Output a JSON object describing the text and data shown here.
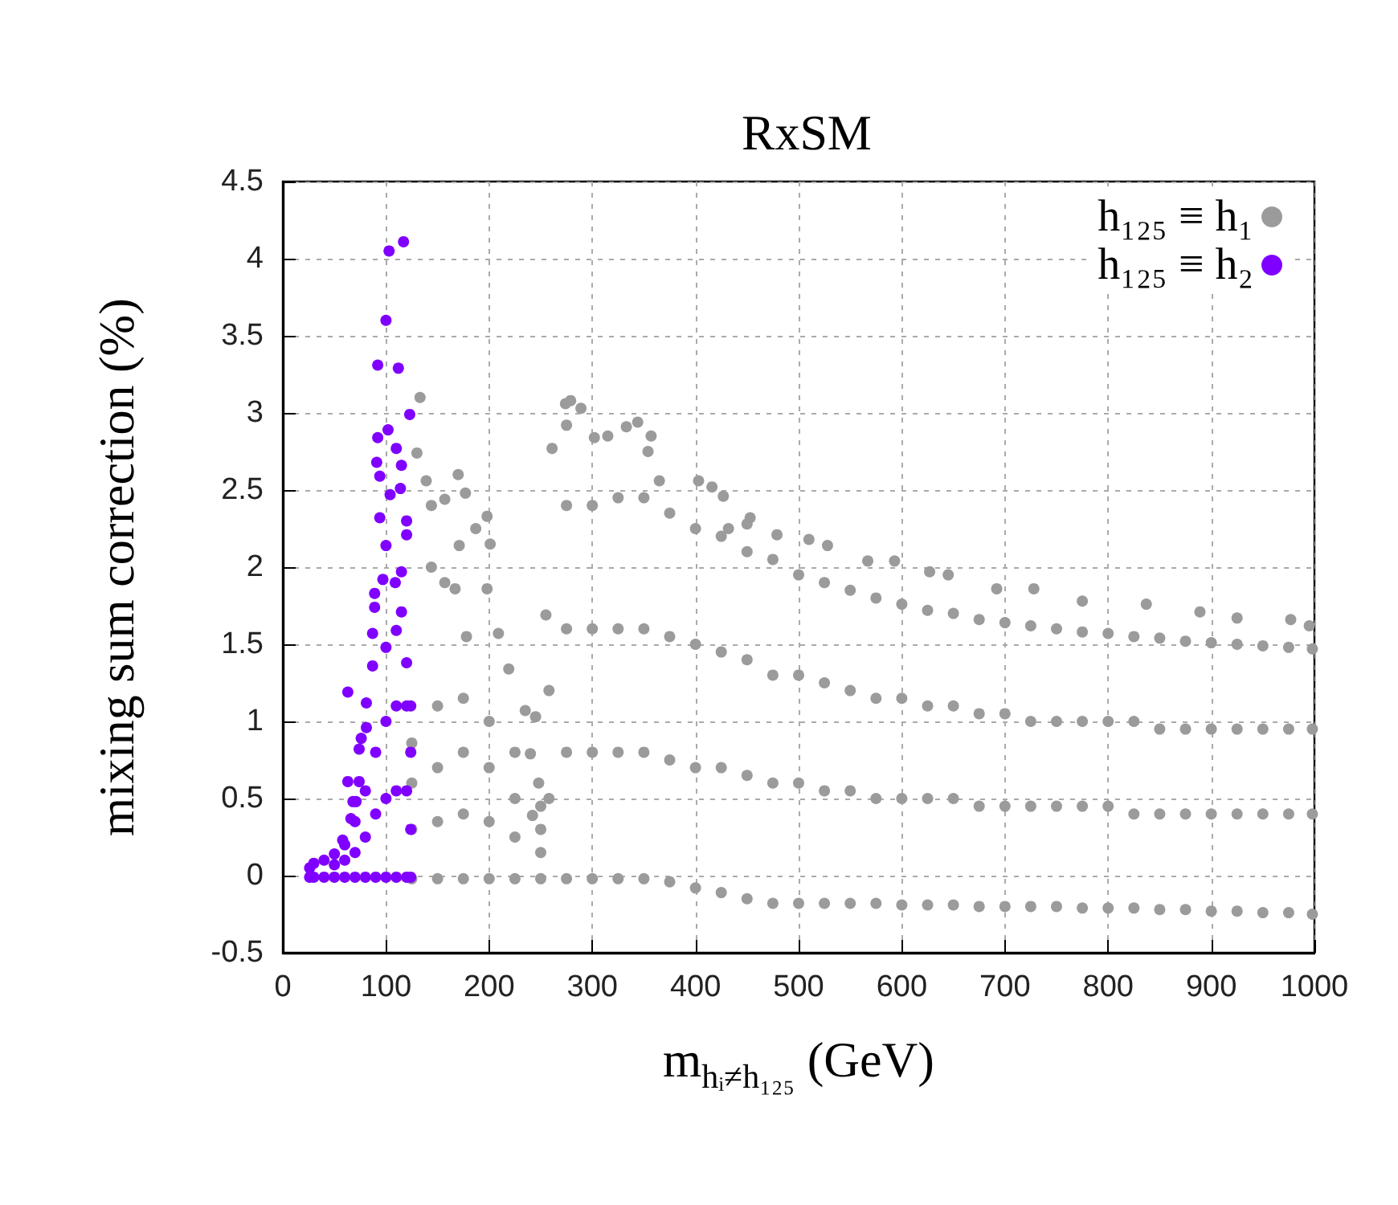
{
  "chart_data": {
    "type": "scatter",
    "title": "RxSM",
    "xlabel": "m$_{hᵢ≠h₁₂₅}$ (GeV)",
    "ylabel": "mixing sum correction (%)",
    "xlim": [
      0,
      1000
    ],
    "xticks": [
      0,
      100,
      200,
      300,
      400,
      500,
      600,
      700,
      800,
      900,
      1000
    ],
    "ylim": [
      -0.5,
      4.5
    ],
    "yticks": [
      -0.5,
      0,
      0.5,
      1,
      1.5,
      2,
      2.5,
      3,
      3.5,
      4,
      4.5
    ],
    "grid": true,
    "legend": "top right",
    "marker": "circle",
    "series": [
      {
        "name": "h₁₂₅ ≡ h₁",
        "color": "#9b9b9b",
        "x": [
          125,
          125,
          125,
          125,
          150,
          150,
          150,
          150,
          175,
          175,
          175,
          175,
          200,
          200,
          200,
          200,
          225,
          225,
          225,
          225,
          250,
          250,
          250,
          250,
          275,
          275,
          275,
          275,
          300,
          300,
          300,
          300,
          325,
          325,
          325,
          325,
          350,
          350,
          350,
          350,
          375,
          375,
          375,
          375,
          400,
          400,
          400,
          400,
          425,
          425,
          425,
          425,
          450,
          450,
          450,
          450,
          475,
          475,
          475,
          475,
          500,
          500,
          500,
          500,
          525,
          525,
          525,
          525,
          550,
          550,
          550,
          550,
          575,
          575,
          575,
          575,
          600,
          600,
          600,
          600,
          625,
          625,
          625,
          625,
          650,
          650,
          650,
          650,
          675,
          675,
          675,
          675,
          700,
          700,
          700,
          700,
          725,
          725,
          725,
          725,
          750,
          750,
          750,
          750,
          775,
          775,
          775,
          775,
          800,
          800,
          800,
          800,
          825,
          825,
          825,
          825,
          850,
          850,
          850,
          850,
          875,
          875,
          875,
          875,
          900,
          900,
          900,
          900,
          925,
          925,
          925,
          925,
          950,
          950,
          950,
          950,
          975,
          975,
          975,
          975,
          998,
          998,
          998,
          998,
          133,
          130,
          139,
          170,
          177,
          157,
          144,
          198,
          187,
          171,
          201,
          144,
          157,
          198,
          167,
          209,
          178,
          219,
          235,
          245,
          240,
          248,
          242,
          255,
          258,
          258,
          261,
          274,
          279,
          289,
          275,
          302,
          315,
          333,
          344,
          357,
          354,
          365,
          403,
          416,
          432,
          450,
          427,
          453,
          479,
          510,
          528,
          567,
          593,
          627,
          645,
          692,
          728,
          775,
          837,
          889,
          925,
          977,
          995
        ],
        "values": [
          -0.02,
          0.3,
          0.6,
          0.86,
          -0.02,
          0.35,
          0.7,
          1.1,
          -0.02,
          0.4,
          0.8,
          1.15,
          -0.02,
          0.35,
          0.7,
          1,
          -0.02,
          0.25,
          0.5,
          0.8,
          -0.02,
          0.15,
          0.3,
          0.45,
          -0.02,
          0.8,
          1.6,
          2.4,
          -0.02,
          0.8,
          1.6,
          2.4,
          -0.02,
          0.8,
          1.6,
          2.45,
          -0.02,
          0.8,
          1.6,
          2.45,
          -0.04,
          0.75,
          1.55,
          2.35,
          -0.08,
          0.7,
          1.5,
          2.25,
          -0.11,
          0.7,
          1.45,
          2.2,
          -0.15,
          0.65,
          1.4,
          2.1,
          -0.18,
          0.6,
          1.3,
          2.05,
          -0.18,
          0.6,
          1.3,
          1.95,
          -0.18,
          0.55,
          1.25,
          1.9,
          -0.18,
          0.55,
          1.2,
          1.85,
          -0.18,
          0.5,
          1.15,
          1.8,
          -0.19,
          0.5,
          1.15,
          1.76,
          -0.19,
          0.5,
          1.1,
          1.72,
          -0.19,
          0.5,
          1.1,
          1.7,
          -0.2,
          0.45,
          1.05,
          1.66,
          -0.2,
          0.45,
          1.05,
          1.64,
          -0.2,
          0.45,
          1,
          1.62,
          -0.2,
          0.45,
          1,
          1.6,
          -0.21,
          0.45,
          1,
          1.58,
          -0.21,
          0.45,
          1,
          1.57,
          -0.21,
          0.4,
          1,
          1.55,
          -0.22,
          0.4,
          0.95,
          1.54,
          -0.22,
          0.4,
          0.95,
          1.52,
          -0.23,
          0.4,
          0.95,
          1.51,
          -0.23,
          0.4,
          0.95,
          1.5,
          -0.24,
          0.4,
          0.95,
          1.49,
          -0.24,
          0.4,
          0.95,
          1.48,
          -0.25,
          0.4,
          0.95,
          1.47,
          3.1,
          2.74,
          2.56,
          2.6,
          2.48,
          2.44,
          2.4,
          2.33,
          2.25,
          2.14,
          2.15,
          2,
          1.9,
          1.86,
          1.86,
          1.57,
          1.55,
          1.34,
          1.07,
          1.03,
          0.79,
          0.6,
          0.39,
          1.69,
          0.5,
          1.2,
          2.77,
          3.06,
          3.08,
          3.03,
          2.92,
          2.84,
          2.85,
          2.91,
          2.94,
          2.85,
          2.75,
          2.56,
          2.56,
          2.52,
          2.25,
          2.28,
          2.46,
          2.32,
          2.21,
          2.18,
          2.14,
          2.04,
          2.04,
          1.97,
          1.95,
          1.86,
          1.86,
          1.78,
          1.76,
          1.71,
          1.67,
          1.66,
          1.62
        ]
      },
      {
        "name": "h₁₂₅ ≡ h₂",
        "color": "#8000ff",
        "x": [
          26,
          26,
          30,
          30,
          40,
          40,
          50,
          50,
          50,
          60,
          60,
          60,
          70,
          70,
          70,
          80,
          80,
          80,
          90,
          90,
          90,
          100,
          100,
          100,
          110,
          110,
          110,
          120,
          120,
          120,
          124,
          124,
          124,
          124,
          63,
          63,
          74,
          81,
          76,
          68,
          87,
          89,
          92,
          91,
          92,
          100,
          103,
          117,
          112,
          123,
          110,
          115,
          102,
          94,
          104,
          114,
          94,
          120,
          100,
          115,
          120,
          97,
          109,
          89,
          115,
          110,
          100,
          120,
          87,
          81,
          74,
          71,
          66,
          58
        ],
        "values": [
          -0.01,
          0.05,
          -0.01,
          0.08,
          -0.01,
          0.1,
          -0.01,
          0.07,
          0.14,
          -0.01,
          0.1,
          0.2,
          -0.01,
          0.15,
          0.35,
          -0.01,
          0.25,
          0.55,
          -0.01,
          0.4,
          0.8,
          -0.01,
          0.5,
          1,
          -0.01,
          0.55,
          1.1,
          -0.01,
          0.55,
          1.1,
          -0.01,
          0.3,
          0.8,
          1.1,
          1.19,
          0.61,
          0.61,
          1.12,
          0.89,
          0.48,
          1.57,
          1.83,
          2.84,
          2.68,
          3.31,
          3.6,
          4.05,
          4.11,
          3.29,
          2.99,
          2.77,
          2.66,
          2.89,
          2.59,
          2.47,
          2.51,
          2.32,
          2.3,
          2.14,
          1.97,
          2.21,
          1.92,
          1.9,
          1.74,
          1.71,
          1.59,
          1.48,
          1.38,
          1.36,
          0.96,
          0.82,
          0.48,
          0.37,
          0.23
        ]
      }
    ]
  }
}
